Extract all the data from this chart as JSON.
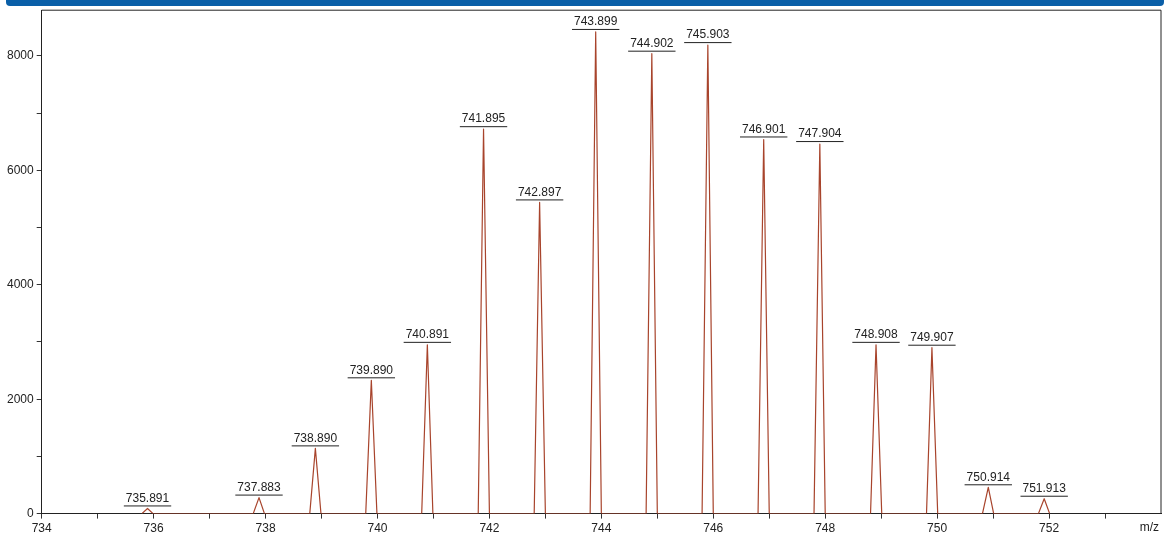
{
  "chart_data": {
    "type": "line",
    "xlabel": "m/z",
    "series": [
      {
        "color": "#a8442c",
        "x": [
          735.79,
          735.891,
          735.99,
          737.78,
          737.883,
          737.98,
          738.79,
          738.89,
          738.99,
          739.79,
          739.89,
          739.99,
          740.79,
          740.891,
          740.99,
          741.8,
          741.895,
          742.0,
          742.8,
          742.897,
          743.0,
          743.8,
          743.899,
          744.0,
          744.8,
          744.902,
          745.0,
          745.8,
          745.903,
          746.0,
          746.8,
          746.901,
          747.0,
          747.8,
          747.904,
          748.0,
          748.81,
          748.908,
          749.01,
          749.81,
          749.907,
          750.01,
          750.81,
          750.914,
          751.01,
          751.81,
          751.913,
          752.01
        ],
        "values": [
          0,
          90,
          0,
          0,
          280,
          0,
          0,
          1140,
          0,
          0,
          2330,
          0,
          0,
          2950,
          0,
          0,
          6720,
          0,
          0,
          5440,
          0,
          0,
          8420,
          0,
          0,
          8040,
          0,
          0,
          8190,
          0,
          0,
          6540,
          0,
          0,
          6460,
          0,
          0,
          2950,
          0,
          0,
          2900,
          0,
          0,
          460,
          0,
          0,
          260,
          0
        ]
      }
    ],
    "xlim": [
      734,
      754
    ],
    "xticks": [
      734,
      {
        "value": 735,
        "label": null
      },
      736,
      {
        "value": 737,
        "label": null
      },
      738,
      {
        "value": 739,
        "label": null
      },
      740,
      {
        "value": 741,
        "label": null
      },
      742,
      {
        "value": 743,
        "label": null
      },
      744,
      {
        "value": 745,
        "label": null
      },
      746,
      {
        "value": 747,
        "label": null
      },
      748,
      {
        "value": 749,
        "label": null
      },
      750,
      {
        "value": 751,
        "label": null
      },
      752,
      {
        "value": 753,
        "label": null
      }
    ],
    "ylim": [
      0,
      8800
    ],
    "yticks": [
      0,
      {
        "value": 1000,
        "label": null
      },
      2000,
      {
        "value": 3000,
        "label": null
      },
      4000,
      {
        "value": 5000,
        "label": null
      },
      6000,
      {
        "value": 7000,
        "label": null
      },
      8000
    ],
    "grid": false,
    "legend": false,
    "marker": "none",
    "annotations": [
      {
        "text": "735.891",
        "x": 735.891,
        "y": 90
      },
      {
        "text": "737.883",
        "x": 737.883,
        "y": 280
      },
      {
        "text": "738.890",
        "x": 738.89,
        "y": 1140
      },
      {
        "text": "739.890",
        "x": 739.89,
        "y": 2330
      },
      {
        "text": "740.891",
        "x": 740.891,
        "y": 2950
      },
      {
        "text": "741.895",
        "x": 741.895,
        "y": 6720
      },
      {
        "text": "742.897",
        "x": 742.897,
        "y": 5440
      },
      {
        "text": "743.899",
        "x": 743.899,
        "y": 8420
      },
      {
        "text": "744.902",
        "x": 744.902,
        "y": 8040
      },
      {
        "text": "745.903",
        "x": 745.903,
        "y": 8190
      },
      {
        "text": "746.901",
        "x": 746.901,
        "y": 6540
      },
      {
        "text": "747.904",
        "x": 747.904,
        "y": 6460
      },
      {
        "text": "748.908",
        "x": 748.908,
        "y": 2950
      },
      {
        "text": "749.907",
        "x": 749.907,
        "y": 2900
      },
      {
        "text": "750.914",
        "x": 750.914,
        "y": 460
      },
      {
        "text": "751.913",
        "x": 751.913,
        "y": 260
      }
    ]
  }
}
